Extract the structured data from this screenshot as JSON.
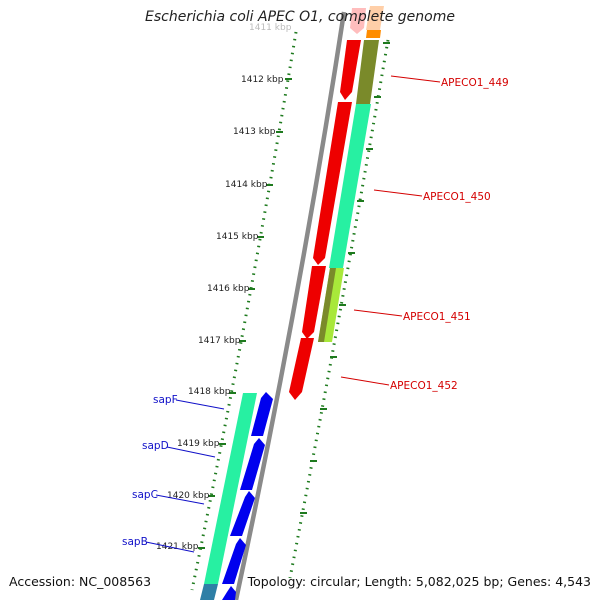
{
  "header": {
    "title": "Escherichia coli APEC O1, complete genome"
  },
  "footer": {
    "accession": "Accession: NC_008563",
    "topology": "Topology: circular; Length: 5,082,025 bp; Genes: 4,543"
  },
  "colors": {
    "backbone": "#8a8a8a",
    "tick_green": "#1e7a1e",
    "label_red": "#d40000",
    "label_blue": "#1010c8",
    "gene_red": "#ee0000",
    "gene_olive": "#7a8a2a",
    "gene_aquamarine": "#27f0a2",
    "gene_yellowgreen": "#a8e83a",
    "gene_blue": "#0000ee",
    "gene_steelblue": "#2e7fa6",
    "gene_orange": "#ff8c00"
  },
  "ruler": {
    "kbp_labels": [
      "1411 kbp",
      "1412 kbp",
      "1413 kbp",
      "1414 kbp",
      "1415 kbp",
      "1416 kbp",
      "1417 kbp",
      "1418 kbp",
      "1419 kbp",
      "1420 kbp",
      "1421 kbp"
    ]
  },
  "gene_labels": {
    "apeco1_449": "APECO1_449",
    "apeco1_450": "APECO1_450",
    "apeco1_451": "APECO1_451",
    "apeco1_452": "APECO1_452",
    "sapF": "sapF",
    "sapD": "sapD",
    "sapC": "sapC",
    "sapB": "sapB"
  }
}
